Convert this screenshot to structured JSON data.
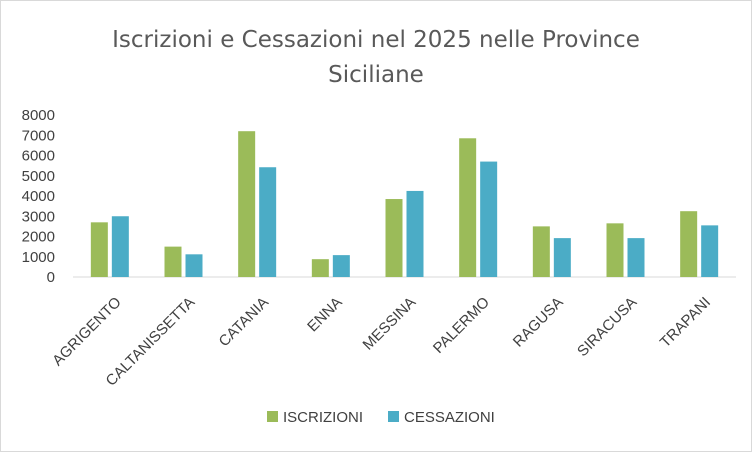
{
  "chart_data": {
    "type": "bar",
    "title_lines": [
      "Iscrizioni e Cessazioni nel 2025 nelle Province",
      "Siciliane"
    ],
    "categories": [
      "AGRIGENTO",
      "CALTANISSETTA",
      "CATANIA",
      "ENNA",
      "MESSINA",
      "PALERMO",
      "RAGUSA",
      "SIRACUSA",
      "TRAPANI"
    ],
    "series": [
      {
        "name": "ISCRIZIONI",
        "color": "#9bbb59",
        "values": [
          2700,
          1500,
          7200,
          880,
          3850,
          6850,
          2500,
          2650,
          3250
        ]
      },
      {
        "name": "CESSAZIONI",
        "color": "#4bacc6",
        "values": [
          3000,
          1120,
          5420,
          1080,
          4250,
          5700,
          1920,
          1920,
          2550
        ]
      }
    ],
    "yticks": [
      "0",
      "1000",
      "2000",
      "3000",
      "4000",
      "5000",
      "6000",
      "7000",
      "8000"
    ],
    "ylim": [
      0,
      8000
    ],
    "xlabel": "",
    "ylabel": "",
    "grid": false,
    "legend_position": "bottom"
  }
}
